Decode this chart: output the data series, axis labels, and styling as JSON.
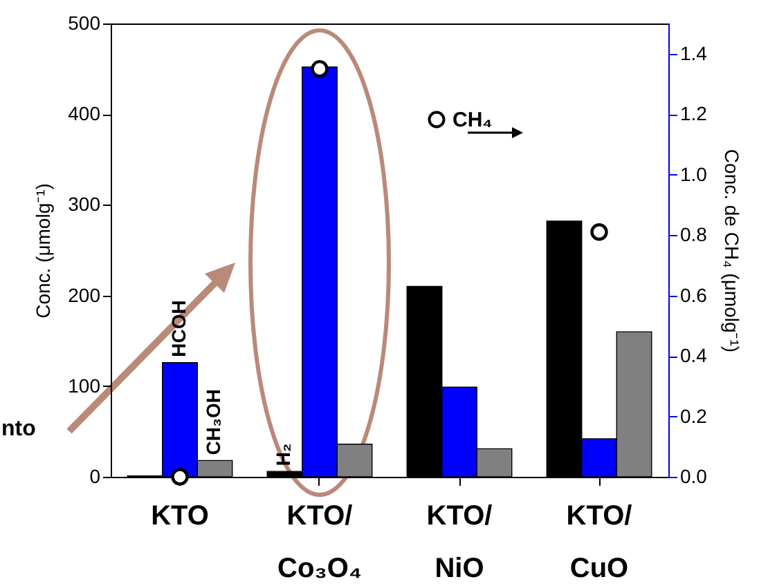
{
  "chart_data": {
    "type": "bar",
    "categories": [
      "KTO",
      "KTO/\nCo₃O₄",
      "KTO/\nNiO",
      "KTO/\nCuO"
    ],
    "ylabel": "Conc. (μmolg⁻¹)",
    "y2label": "Conc. de CH₄ (μmolg⁻¹)",
    "ylim": [
      0,
      500
    ],
    "yticks": [
      0,
      100,
      200,
      300,
      400,
      500
    ],
    "y2lim": [
      0,
      1.5
    ],
    "y2ticks": [
      {
        "value": 0,
        "label": "0.0"
      },
      0.2,
      0.4,
      0.6,
      0.8,
      {
        "value": 1,
        "label": "1.0"
      },
      1.2,
      1.4
    ],
    "series": [
      {
        "name": "H₂",
        "color": "#000000",
        "values": [
          1,
          6,
          210,
          282
        ]
      },
      {
        "name": "HCOH",
        "color": "#0000ff",
        "values": [
          126,
          452,
          99,
          42
        ]
      },
      {
        "name": "CH₃OH",
        "color": "#808080",
        "values": [
          18,
          36,
          31,
          160
        ]
      },
      {
        "name": "CH₄",
        "type": "scatter",
        "axis": "y2",
        "color": "#000000",
        "values": [
          0,
          1.35,
          null,
          0.81
        ]
      }
    ],
    "marker": "circle",
    "legend": "top",
    "grid": false,
    "annotations": [
      "nto"
    ]
  }
}
